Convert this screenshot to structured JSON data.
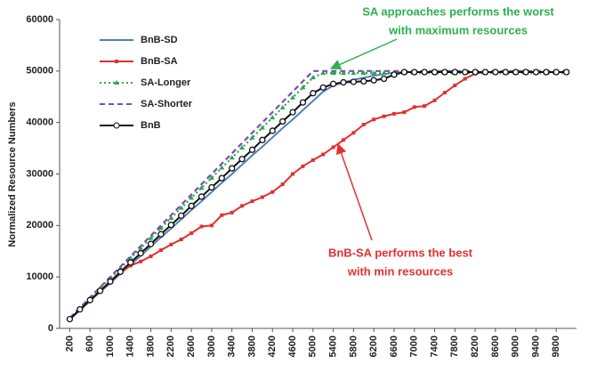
{
  "chart_data": {
    "type": "line",
    "y_label": "Normalized Resource Numbers",
    "x": [
      200,
      400,
      600,
      800,
      1000,
      1200,
      1400,
      1600,
      1800,
      2000,
      2200,
      2400,
      2600,
      2800,
      3000,
      3200,
      3400,
      3600,
      3800,
      4000,
      4200,
      4400,
      4600,
      4800,
      5000,
      5200,
      5400,
      5600,
      5800,
      6000,
      6200,
      6400,
      6600,
      6800,
      7000,
      7200,
      7400,
      7600,
      7800,
      8000,
      8200,
      8400,
      8600,
      8800,
      9000,
      9200,
      9400,
      9600,
      9800,
      10000
    ],
    "xlim": [
      0,
      10200
    ],
    "xticks": [
      200,
      600,
      1000,
      1400,
      1800,
      2200,
      2600,
      3000,
      3400,
      3800,
      4200,
      4600,
      5000,
      5400,
      5800,
      6200,
      6600,
      7000,
      7400,
      7800,
      8200,
      8600,
      9000,
      9400,
      9800
    ],
    "ylim": [
      0,
      60000
    ],
    "yticks": [
      0,
      10000,
      20000,
      30000,
      40000,
      50000,
      60000
    ],
    "grid": false,
    "legend": "upper left",
    "series": [
      {
        "name": "BnB-SD",
        "color": "#4f81bd",
        "dash": "solid",
        "marker": "none",
        "values": [
          1700,
          3500,
          5300,
          7100,
          8800,
          10600,
          12400,
          14100,
          15900,
          17700,
          19400,
          21200,
          23000,
          24700,
          26500,
          28300,
          30000,
          31800,
          33600,
          35300,
          37100,
          38900,
          40600,
          42400,
          44200,
          46000,
          47200,
          47800,
          48300,
          48700,
          49100,
          49400,
          49700,
          49800,
          49800,
          49800,
          49800,
          49800,
          49800,
          49800,
          49800,
          49800,
          49800,
          49800,
          49800,
          49800,
          49800,
          49800,
          49800,
          49800
        ]
      },
      {
        "name": "BnB-SA",
        "color": "#e03030",
        "dash": "solid",
        "marker": "square",
        "values": [
          1800,
          3600,
          5400,
          7200,
          9000,
          10800,
          12200,
          13000,
          14000,
          15200,
          16300,
          17300,
          18500,
          19800,
          20000,
          22000,
          22500,
          23800,
          24700,
          25500,
          26500,
          28000,
          30000,
          31500,
          32700,
          33800,
          35200,
          36600,
          38000,
          39600,
          40600,
          41200,
          41700,
          42000,
          43000,
          43200,
          44300,
          45800,
          47200,
          48500,
          49500,
          49800,
          49800,
          49800,
          49800,
          49800,
          49800,
          49800,
          49800,
          49800
        ]
      },
      {
        "name": "SA-Longer",
        "color": "#2ea84a",
        "dash": "dotted",
        "marker": "triangle",
        "values": [
          1950,
          3900,
          5850,
          7800,
          9750,
          11700,
          13650,
          15600,
          17550,
          19500,
          21450,
          23400,
          25350,
          27300,
          29250,
          31200,
          33150,
          35100,
          37050,
          39000,
          40950,
          42900,
          44850,
          46800,
          48750,
          49600,
          49600,
          49600,
          49600,
          49600,
          49600,
          49600,
          49600,
          49600,
          49600,
          49600,
          49600,
          49600,
          49600,
          49600,
          49600,
          49600,
          49600,
          49600,
          49600,
          49600,
          49600,
          49600,
          49600,
          49600
        ]
      },
      {
        "name": "SA-Shorter",
        "color": "#7a4fb0",
        "dash": "dashed",
        "marker": "none",
        "values": [
          2000,
          4000,
          6000,
          8000,
          10000,
          12000,
          14000,
          16000,
          18000,
          20000,
          22000,
          24000,
          26000,
          28000,
          30000,
          32000,
          34000,
          36000,
          38000,
          40000,
          42000,
          44000,
          46000,
          48000,
          50000,
          50000,
          50000,
          50000,
          50000,
          50000,
          50000,
          50000,
          50000,
          50000,
          50000,
          50000,
          50000,
          50000,
          50000,
          50000,
          50000,
          50000,
          50000,
          50000,
          50000,
          50000,
          50000,
          50000,
          50000,
          50000
        ]
      },
      {
        "name": "BnB",
        "color": "#111111",
        "dash": "solid",
        "marker": "circle",
        "values": [
          1800,
          3700,
          5500,
          7300,
          9100,
          11000,
          12800,
          14600,
          16400,
          18300,
          20100,
          21900,
          23800,
          25600,
          27400,
          29200,
          31100,
          32900,
          34700,
          36600,
          38400,
          40200,
          42000,
          43900,
          45700,
          46800,
          47500,
          47800,
          47900,
          48000,
          48200,
          48500,
          49300,
          49800,
          49800,
          49800,
          49800,
          49800,
          49800,
          49800,
          49800,
          49800,
          49800,
          49800,
          49800,
          49800,
          49800,
          49800,
          49800,
          49800
        ]
      }
    ],
    "annotations": [
      {
        "lines": [
          "SA approaches performs the worst",
          "with maximum resources"
        ],
        "color": "#2eb04f"
      },
      {
        "lines": [
          "BnB-SA performs the best",
          "with min resources"
        ],
        "color": "#e53030"
      }
    ]
  }
}
